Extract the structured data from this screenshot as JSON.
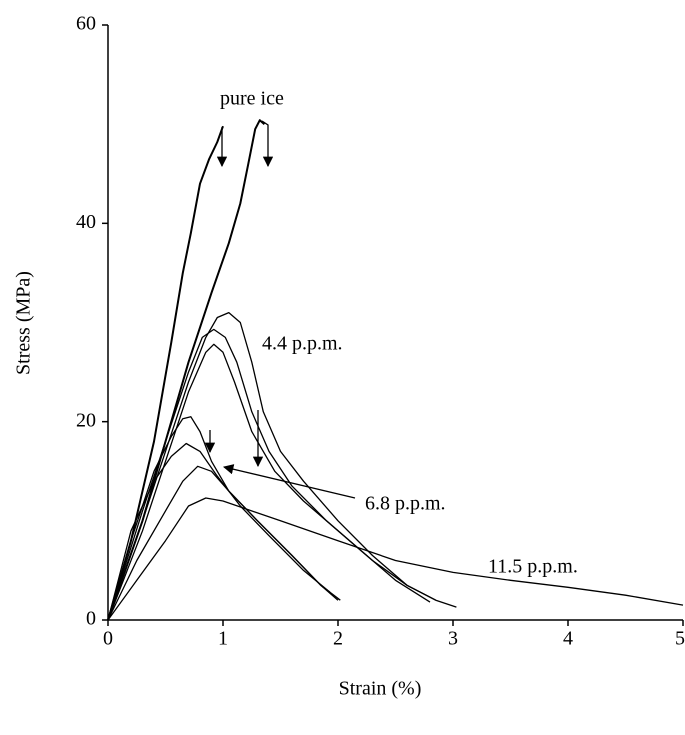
{
  "chart_data": {
    "type": "line",
    "x_label": "Strain (%)",
    "y_label": "Stress (MPa)",
    "xlim": [
      0,
      5
    ],
    "xticks": [
      0,
      1,
      2,
      3,
      4,
      5
    ],
    "ylim": [
      0,
      60
    ],
    "yticks": [
      0,
      20,
      40,
      60
    ],
    "annotations": [
      "pure ice",
      "4.4 p.p.m.",
      "6.8 p.p.m.",
      "11.5 p.p.m."
    ],
    "series": [
      {
        "color": "#000000",
        "line_width": 2,
        "x": [
          0,
          0.2,
          0.4,
          0.55,
          0.65,
          0.72,
          0.8,
          0.88,
          0.95,
          1.0
        ],
        "values": [
          0,
          8,
          18,
          28,
          35,
          39,
          44,
          46.5,
          48.2,
          49.8
        ]
      },
      {
        "color": "#000000",
        "line_width": 2,
        "x": [
          0,
          0.3,
          0.5,
          0.7,
          0.9,
          1.05,
          1.15,
          1.22,
          1.28,
          1.32,
          1.36
        ],
        "values": [
          0,
          10,
          18,
          26,
          33,
          38,
          42,
          46,
          49.5,
          50.4,
          50
        ]
      },
      {
        "color": "#000000",
        "line_width": 1.3,
        "x": [
          0,
          0.3,
          0.5,
          0.7,
          0.85,
          0.95,
          1.05,
          1.15,
          1.25,
          1.35,
          1.5,
          1.7,
          2.0,
          2.3,
          2.6,
          2.85,
          3.03
        ],
        "values": [
          0,
          10,
          17,
          24,
          28.5,
          30.5,
          31,
          30,
          26,
          21,
          17,
          14,
          10,
          6.5,
          3.5,
          2,
          1.3
        ]
      },
      {
        "color": "#000000",
        "line_width": 1.3,
        "x": [
          0,
          0.3,
          0.5,
          0.7,
          0.82,
          0.92,
          1.02,
          1.12,
          1.25,
          1.4,
          1.6,
          1.9,
          2.2,
          2.5,
          2.8
        ],
        "values": [
          0,
          11,
          18,
          25,
          28.5,
          29.3,
          28.5,
          26,
          21,
          17,
          13.5,
          10,
          7,
          4,
          1.8
        ]
      },
      {
        "color": "#000000",
        "line_width": 1.3,
        "x": [
          0,
          0.3,
          0.5,
          0.7,
          0.85,
          0.92,
          1.0,
          1.1,
          1.25,
          1.45,
          1.7,
          2.0,
          2.3,
          2.6,
          2.85
        ],
        "values": [
          0,
          9,
          16,
          23,
          27,
          27.8,
          27,
          24,
          19,
          15,
          12,
          9,
          6,
          3.5,
          2
        ]
      },
      {
        "color": "#000000",
        "line_width": 1.3,
        "x": [
          0,
          0.2,
          0.4,
          0.55,
          0.65,
          0.72,
          0.8,
          0.9,
          1.05,
          1.3,
          1.6,
          1.85,
          2.02
        ],
        "values": [
          0,
          8,
          15,
          18.5,
          20.3,
          20.5,
          19,
          16,
          13,
          10,
          6.5,
          3.5,
          2
        ]
      },
      {
        "color": "#000000",
        "line_width": 1.3,
        "x": [
          0,
          0.2,
          0.4,
          0.55,
          0.68,
          0.8,
          0.95,
          1.15,
          1.4,
          1.7,
          1.93
        ],
        "values": [
          0,
          9,
          14,
          16.5,
          17.8,
          17,
          14.5,
          11.5,
          8.5,
          5,
          2.8
        ]
      },
      {
        "color": "#000000",
        "line_width": 1.3,
        "x": [
          0,
          0.25,
          0.5,
          0.65,
          0.78,
          0.9,
          1.05,
          1.3,
          1.6,
          1.85,
          2.0
        ],
        "values": [
          0,
          6,
          11,
          14,
          15.5,
          15,
          13,
          10,
          6.5,
          3.5,
          2
        ]
      },
      {
        "color": "#000000",
        "line_width": 1.3,
        "x": [
          0,
          0.25,
          0.5,
          0.7,
          0.85,
          1.0,
          1.5,
          2.0,
          2.5,
          3.0,
          3.5,
          4.0,
          4.5,
          5.0
        ],
        "values": [
          0,
          4,
          8,
          11.5,
          12.3,
          12,
          10,
          8,
          6,
          4.8,
          4,
          3.3,
          2.5,
          1.5
        ]
      }
    ]
  }
}
